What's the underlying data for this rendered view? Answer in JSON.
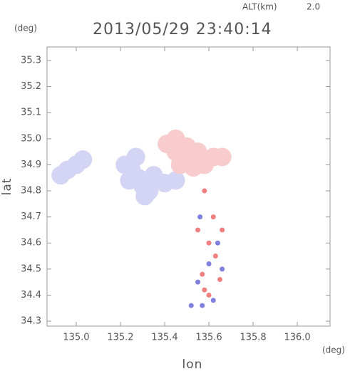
{
  "chart_data": {
    "type": "scatter",
    "title": "2013/05/29 23:40:14",
    "altitude_label": "ALT(km)",
    "altitude_value": "2.0",
    "x_label": "lon",
    "x_unit": "(deg)",
    "y_label": "lat",
    "y_unit": "(deg)",
    "xlim": [
      134.868,
      136.148
    ],
    "ylim": [
      34.281,
      35.352
    ],
    "xticks": [
      {
        "value": 135,
        "label": "135.0"
      },
      135.2,
      135.4,
      135.6,
      135.8,
      {
        "value": 136,
        "label": "136.0"
      }
    ],
    "yticks": [
      34.3,
      34.4,
      34.5,
      34.6,
      34.7,
      34.8,
      34.9,
      {
        "value": 35,
        "label": "35.0"
      },
      35.1,
      35.2,
      35.3
    ],
    "series": [
      {
        "color": "#d4d4f4",
        "x": [
          134.93,
          134.96,
          135.0,
          135.03,
          135.22,
          135.25,
          135.28,
          135.3,
          135.33,
          135.27,
          135.24,
          135.35,
          135.4,
          135.45,
          135.31
        ],
        "values": [
          34.86,
          34.88,
          34.9,
          34.92,
          34.9,
          34.88,
          34.85,
          34.82,
          34.8,
          34.93,
          34.84,
          34.86,
          34.83,
          34.84,
          34.78
        ]
      },
      {
        "color": "#f8cccc",
        "x": [
          135.45,
          135.5,
          135.55,
          135.5,
          135.58,
          135.62,
          135.47,
          135.53,
          135.41,
          135.66,
          135.45
        ],
        "values": [
          34.95,
          34.97,
          34.95,
          34.92,
          34.9,
          34.93,
          34.9,
          34.89,
          34.98,
          34.93,
          35.0
        ]
      },
      {
        "color": "#f08080",
        "x": [
          135.58,
          135.62,
          135.6,
          135.63,
          135.57,
          135.65,
          135.6,
          135.55,
          135.66,
          135.58
        ],
        "values": [
          34.8,
          34.7,
          34.6,
          34.55,
          34.48,
          34.46,
          34.4,
          34.65,
          34.65,
          34.42
        ]
      },
      {
        "color": "#8080e0",
        "x": [
          135.56,
          135.6,
          135.64,
          135.55,
          135.62,
          135.57,
          135.52,
          135.66
        ],
        "values": [
          34.7,
          34.52,
          34.6,
          34.45,
          34.38,
          34.36,
          34.36,
          34.5
        ]
      }
    ]
  }
}
